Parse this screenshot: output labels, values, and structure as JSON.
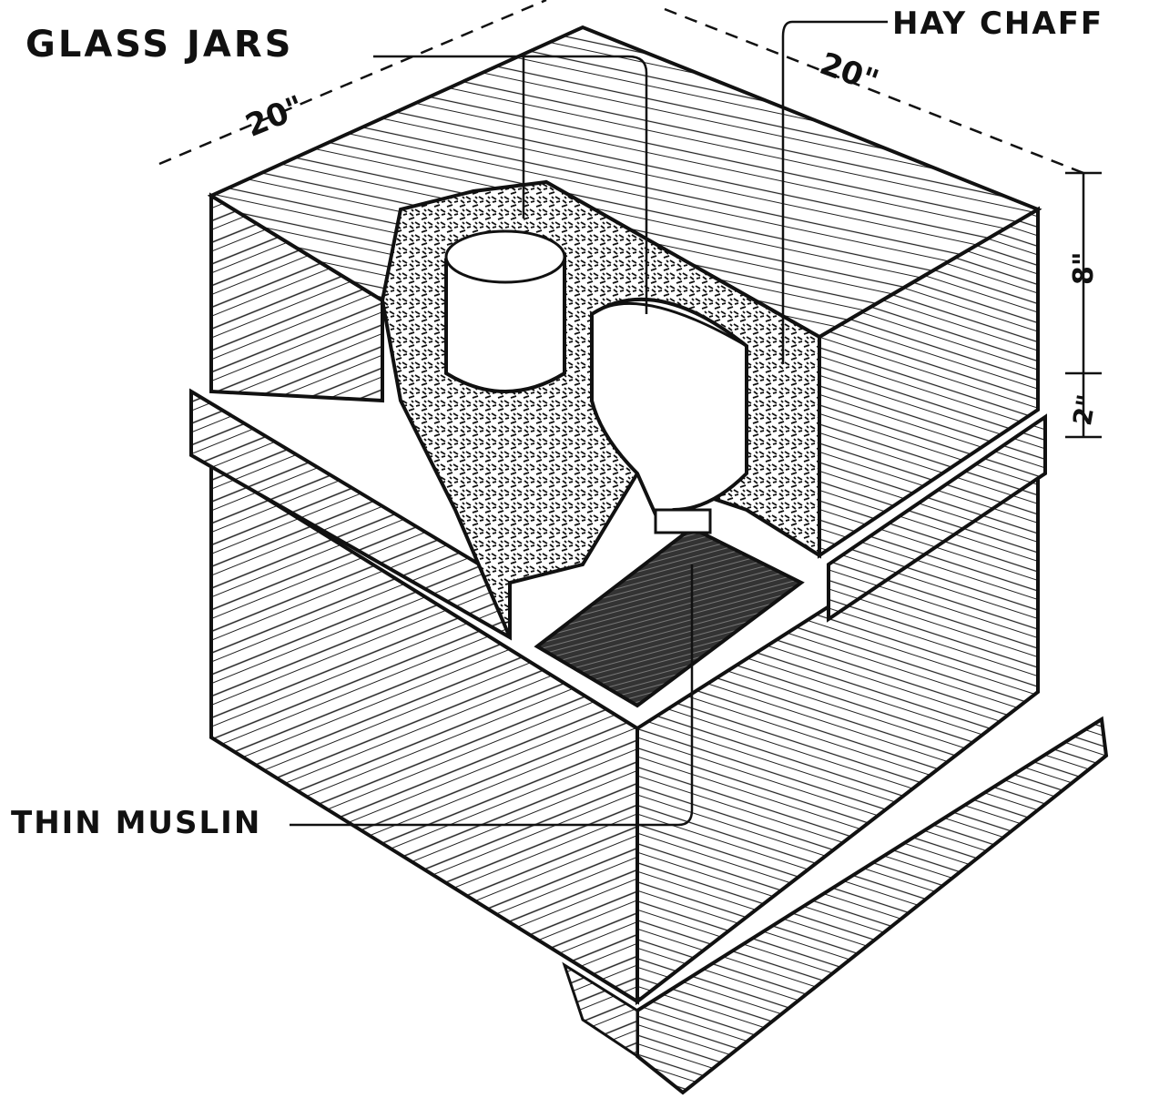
{
  "labels": {
    "glass_jars": "GLASS JARS",
    "hay_chaff": "HAY CHAFF",
    "thin_muslin": "THIN MUSLIN"
  },
  "dimensions": {
    "width_left": "20\"",
    "width_right": "20\"",
    "height_upper": "8\"",
    "height_band": "2\""
  }
}
